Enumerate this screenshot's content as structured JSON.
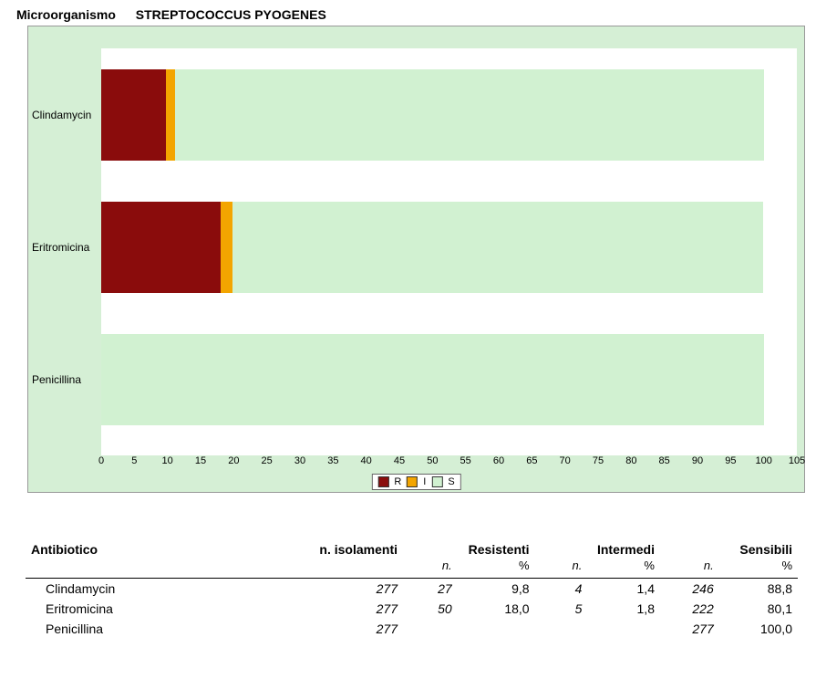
{
  "header": {
    "label": "Microorganismo",
    "value": "STREPTOCOCCUS PYOGENES"
  },
  "chart": {
    "type": "stacked-horizontal-bar",
    "background_color": "#d5efd5",
    "plot_background": "#ffffff",
    "xlim": [
      0,
      105
    ],
    "xtick_step": 5,
    "xticks": [
      0,
      5,
      10,
      15,
      20,
      25,
      30,
      35,
      40,
      45,
      50,
      55,
      60,
      65,
      70,
      75,
      80,
      85,
      90,
      95,
      100,
      105
    ],
    "bar_height_ratio": 0.67,
    "label_fontsize": 12,
    "tick_fontsize": 11,
    "series": [
      {
        "key": "R",
        "label": "R",
        "color": "#8a0c0c"
      },
      {
        "key": "I",
        "label": "I",
        "color": "#f3a500"
      },
      {
        "key": "S",
        "label": "S",
        "color": "#d1f1d1"
      }
    ],
    "categories": [
      {
        "name": "Clindamycin",
        "R": 9.8,
        "I": 1.4,
        "S": 88.8
      },
      {
        "name": "Eritromicina",
        "R": 18.0,
        "I": 1.8,
        "S": 80.1
      },
      {
        "name": "Penicillina",
        "R": 0.0,
        "I": 0.0,
        "S": 100.0
      }
    ],
    "legend": {
      "position": "bottom-center",
      "border_color": "#666666",
      "background": "#ffffff"
    }
  },
  "table": {
    "headers": {
      "antibiotic": "Antibiotico",
      "isolates": "n. isolamenti",
      "resistant": "Resistenti",
      "intermediate": "Intermedi",
      "sensitive": "Sensibili",
      "n_sub": "n.",
      "pct_sub": "%"
    },
    "rows": [
      {
        "name": "Clindamycin",
        "isolates": "277",
        "r_n": "27",
        "r_pct": "9,8",
        "i_n": "4",
        "i_pct": "1,4",
        "s_n": "246",
        "s_pct": "88,8"
      },
      {
        "name": "Eritromicina",
        "isolates": "277",
        "r_n": "50",
        "r_pct": "18,0",
        "i_n": "5",
        "i_pct": "1,8",
        "s_n": "222",
        "s_pct": "80,1"
      },
      {
        "name": "Penicillina",
        "isolates": "277",
        "r_n": "",
        "r_pct": "",
        "i_n": "",
        "i_pct": "",
        "s_n": "277",
        "s_pct": "100,0"
      }
    ],
    "font_size": 14,
    "rule_color": "#000000"
  }
}
